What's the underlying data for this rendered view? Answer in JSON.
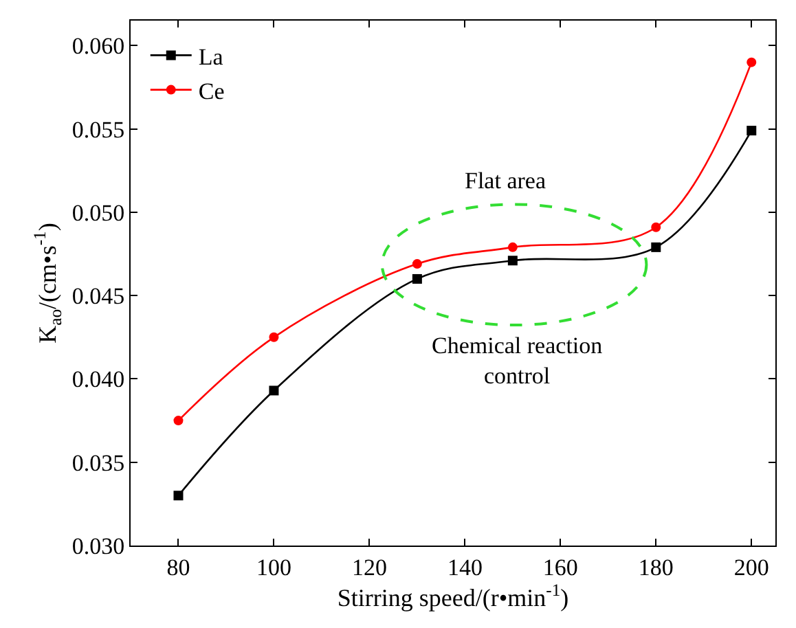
{
  "chart_data": {
    "type": "line",
    "xlabel": "Stirring speed/(r•min$^{-1}$)",
    "ylabel": "K$_{ao}$/(cm•s$^{-1}$)",
    "x": [
      80,
      100,
      130,
      150,
      180,
      200
    ],
    "series": [
      {
        "name": "La",
        "color": "#000000",
        "marker": "square",
        "values": [
          0.033,
          0.0393,
          0.046,
          0.0471,
          0.0479,
          0.0549
        ]
      },
      {
        "name": "Ce",
        "color": "#ff0000",
        "marker": "circle",
        "values": [
          0.0375,
          0.0425,
          0.0469,
          0.0479,
          0.0491,
          0.059
        ]
      }
    ],
    "annotations": [
      "Flat area",
      "Chemical reaction control"
    ],
    "xlim": [
      70,
      205
    ],
    "xticks": [
      80,
      100,
      120,
      140,
      160,
      180,
      200
    ],
    "ylim": [
      0.03,
      0.0615
    ],
    "yticks": [
      {
        "value": 0.03,
        "label": "0.030"
      },
      {
        "value": 0.035,
        "label": "0.035"
      },
      {
        "value": 0.04,
        "label": "0.040"
      },
      {
        "value": 0.045,
        "label": "0.045"
      },
      {
        "value": 0.05,
        "label": "0.050"
      },
      {
        "value": 0.055,
        "label": "0.055"
      },
      {
        "value": 0.06,
        "label": "0.060"
      }
    ],
    "legend": "top left",
    "line_style": "solid"
  }
}
